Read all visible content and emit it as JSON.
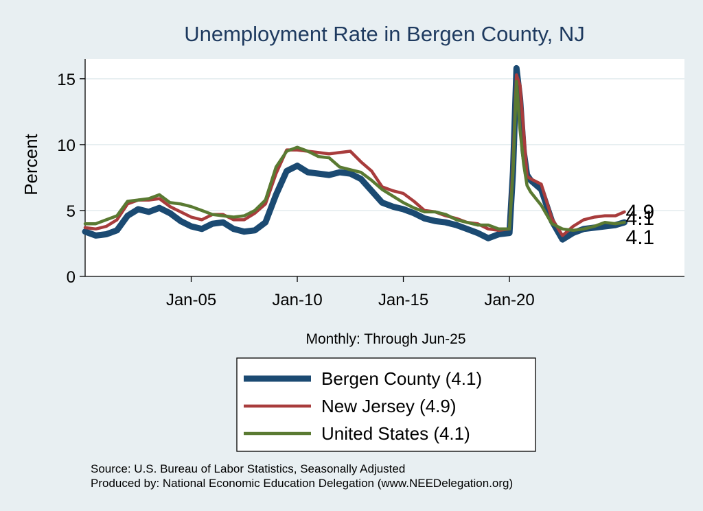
{
  "chart_data": {
    "type": "line",
    "title": "Unemployment Rate in Bergen  County, NJ",
    "ylabel": "Percent",
    "xlabel": "",
    "note": "Monthly: Through Jun-25",
    "ylim": [
      0,
      16.5
    ],
    "yticks": [
      0,
      5,
      10,
      15
    ],
    "xlim": [
      2000.0,
      2028.25
    ],
    "xticks": [
      {
        "value": 2005.0,
        "label": "Jan-05"
      },
      {
        "value": 2010.0,
        "label": "Jan-10"
      },
      {
        "value": 2015.0,
        "label": "Jan-15"
      },
      {
        "value": 2020.0,
        "label": "Jan-20"
      }
    ],
    "grid": true,
    "legend": "bottom",
    "series": [
      {
        "name": "Bergen  County (4.1)",
        "end_label": "4.1",
        "color": "#1b4a72",
        "points": [
          [
            2000.0,
            3.4
          ],
          [
            2000.5,
            3.1
          ],
          [
            2001.0,
            3.2
          ],
          [
            2001.5,
            3.5
          ],
          [
            2002.0,
            4.6
          ],
          [
            2002.5,
            5.1
          ],
          [
            2003.0,
            4.9
          ],
          [
            2003.5,
            5.2
          ],
          [
            2004.0,
            4.8
          ],
          [
            2004.5,
            4.2
          ],
          [
            2005.0,
            3.8
          ],
          [
            2005.5,
            3.6
          ],
          [
            2006.0,
            4.0
          ],
          [
            2006.5,
            4.1
          ],
          [
            2007.0,
            3.6
          ],
          [
            2007.5,
            3.4
          ],
          [
            2008.0,
            3.5
          ],
          [
            2008.5,
            4.1
          ],
          [
            2009.0,
            6.2
          ],
          [
            2009.5,
            8.0
          ],
          [
            2010.0,
            8.4
          ],
          [
            2010.5,
            7.9
          ],
          [
            2011.0,
            7.8
          ],
          [
            2011.5,
            7.7
          ],
          [
            2012.0,
            7.9
          ],
          [
            2012.5,
            7.8
          ],
          [
            2013.0,
            7.4
          ],
          [
            2013.5,
            6.5
          ],
          [
            2014.0,
            5.6
          ],
          [
            2014.5,
            5.3
          ],
          [
            2015.0,
            5.1
          ],
          [
            2015.5,
            4.8
          ],
          [
            2016.0,
            4.4
          ],
          [
            2016.5,
            4.2
          ],
          [
            2017.0,
            4.1
          ],
          [
            2017.5,
            3.9
          ],
          [
            2018.0,
            3.6
          ],
          [
            2018.5,
            3.3
          ],
          [
            2019.0,
            2.9
          ],
          [
            2019.5,
            3.2
          ],
          [
            2020.0,
            3.3
          ],
          [
            2020.17,
            8.0
          ],
          [
            2020.33,
            15.8
          ],
          [
            2020.5,
            13.5
          ],
          [
            2020.67,
            9.5
          ],
          [
            2020.83,
            7.7
          ],
          [
            2021.0,
            7.3
          ],
          [
            2021.5,
            6.6
          ],
          [
            2022.0,
            4.2
          ],
          [
            2022.5,
            2.8
          ],
          [
            2023.0,
            3.3
          ],
          [
            2023.5,
            3.6
          ],
          [
            2024.0,
            3.7
          ],
          [
            2024.5,
            3.8
          ],
          [
            2025.0,
            3.9
          ],
          [
            2025.42,
            4.1
          ]
        ]
      },
      {
        "name": "New Jersey (4.9)",
        "end_label": "4.9",
        "color": "#a83c3c",
        "points": [
          [
            2000.0,
            3.7
          ],
          [
            2000.5,
            3.6
          ],
          [
            2001.0,
            3.8
          ],
          [
            2001.5,
            4.3
          ],
          [
            2002.0,
            5.5
          ],
          [
            2002.5,
            5.8
          ],
          [
            2003.0,
            5.8
          ],
          [
            2003.5,
            5.9
          ],
          [
            2004.0,
            5.3
          ],
          [
            2004.5,
            4.9
          ],
          [
            2005.0,
            4.5
          ],
          [
            2005.5,
            4.3
          ],
          [
            2006.0,
            4.7
          ],
          [
            2006.5,
            4.7
          ],
          [
            2007.0,
            4.3
          ],
          [
            2007.5,
            4.3
          ],
          [
            2008.0,
            4.8
          ],
          [
            2008.5,
            5.5
          ],
          [
            2009.0,
            7.8
          ],
          [
            2009.5,
            9.6
          ],
          [
            2010.0,
            9.6
          ],
          [
            2010.5,
            9.5
          ],
          [
            2011.0,
            9.4
          ],
          [
            2011.5,
            9.3
          ],
          [
            2012.0,
            9.4
          ],
          [
            2012.5,
            9.5
          ],
          [
            2013.0,
            8.7
          ],
          [
            2013.5,
            8.0
          ],
          [
            2014.0,
            6.8
          ],
          [
            2014.5,
            6.5
          ],
          [
            2015.0,
            6.3
          ],
          [
            2015.5,
            5.7
          ],
          [
            2016.0,
            5.0
          ],
          [
            2016.5,
            4.9
          ],
          [
            2017.0,
            4.6
          ],
          [
            2017.5,
            4.4
          ],
          [
            2018.0,
            4.1
          ],
          [
            2018.5,
            4.0
          ],
          [
            2019.0,
            3.6
          ],
          [
            2019.5,
            3.5
          ],
          [
            2020.0,
            3.6
          ],
          [
            2020.17,
            8.5
          ],
          [
            2020.33,
            15.3
          ],
          [
            2020.5,
            14.5
          ],
          [
            2020.67,
            11.0
          ],
          [
            2020.83,
            7.6
          ],
          [
            2021.0,
            7.4
          ],
          [
            2021.5,
            7.0
          ],
          [
            2022.0,
            4.4
          ],
          [
            2022.5,
            3.1
          ],
          [
            2023.0,
            3.8
          ],
          [
            2023.5,
            4.3
          ],
          [
            2024.0,
            4.5
          ],
          [
            2024.5,
            4.6
          ],
          [
            2025.0,
            4.6
          ],
          [
            2025.42,
            4.9
          ]
        ]
      },
      {
        "name": "United States (4.1)",
        "end_label": "4.1",
        "color": "#5a7a32",
        "points": [
          [
            2000.0,
            4.0
          ],
          [
            2000.5,
            4.0
          ],
          [
            2001.0,
            4.3
          ],
          [
            2001.5,
            4.6
          ],
          [
            2002.0,
            5.7
          ],
          [
            2002.5,
            5.8
          ],
          [
            2003.0,
            5.9
          ],
          [
            2003.5,
            6.2
          ],
          [
            2004.0,
            5.6
          ],
          [
            2004.5,
            5.5
          ],
          [
            2005.0,
            5.3
          ],
          [
            2005.5,
            5.0
          ],
          [
            2006.0,
            4.7
          ],
          [
            2006.5,
            4.6
          ],
          [
            2007.0,
            4.5
          ],
          [
            2007.5,
            4.6
          ],
          [
            2008.0,
            5.0
          ],
          [
            2008.5,
            5.8
          ],
          [
            2009.0,
            8.3
          ],
          [
            2009.5,
            9.5
          ],
          [
            2010.0,
            9.8
          ],
          [
            2010.5,
            9.5
          ],
          [
            2011.0,
            9.1
          ],
          [
            2011.5,
            9.0
          ],
          [
            2012.0,
            8.3
          ],
          [
            2012.5,
            8.1
          ],
          [
            2013.0,
            7.9
          ],
          [
            2013.5,
            7.3
          ],
          [
            2014.0,
            6.6
          ],
          [
            2014.5,
            6.1
          ],
          [
            2015.0,
            5.6
          ],
          [
            2015.5,
            5.2
          ],
          [
            2016.0,
            4.9
          ],
          [
            2016.5,
            4.9
          ],
          [
            2017.0,
            4.7
          ],
          [
            2017.5,
            4.3
          ],
          [
            2018.0,
            4.1
          ],
          [
            2018.5,
            3.9
          ],
          [
            2019.0,
            3.9
          ],
          [
            2019.5,
            3.6
          ],
          [
            2020.0,
            3.6
          ],
          [
            2020.17,
            8.0
          ],
          [
            2020.33,
            14.8
          ],
          [
            2020.5,
            11.1
          ],
          [
            2020.67,
            8.5
          ],
          [
            2020.83,
            6.9
          ],
          [
            2021.0,
            6.4
          ],
          [
            2021.5,
            5.4
          ],
          [
            2022.0,
            4.0
          ],
          [
            2022.5,
            3.6
          ],
          [
            2023.0,
            3.5
          ],
          [
            2023.5,
            3.6
          ],
          [
            2024.0,
            3.8
          ],
          [
            2024.5,
            4.1
          ],
          [
            2025.0,
            4.0
          ],
          [
            2025.42,
            4.1
          ]
        ]
      }
    ],
    "source": "Source: U.S. Bureau of Labor Statistics, Seasonally Adjusted",
    "produced_by": "Produced by: National Economic Education Delegation (www.NEEDelegation.org)"
  }
}
